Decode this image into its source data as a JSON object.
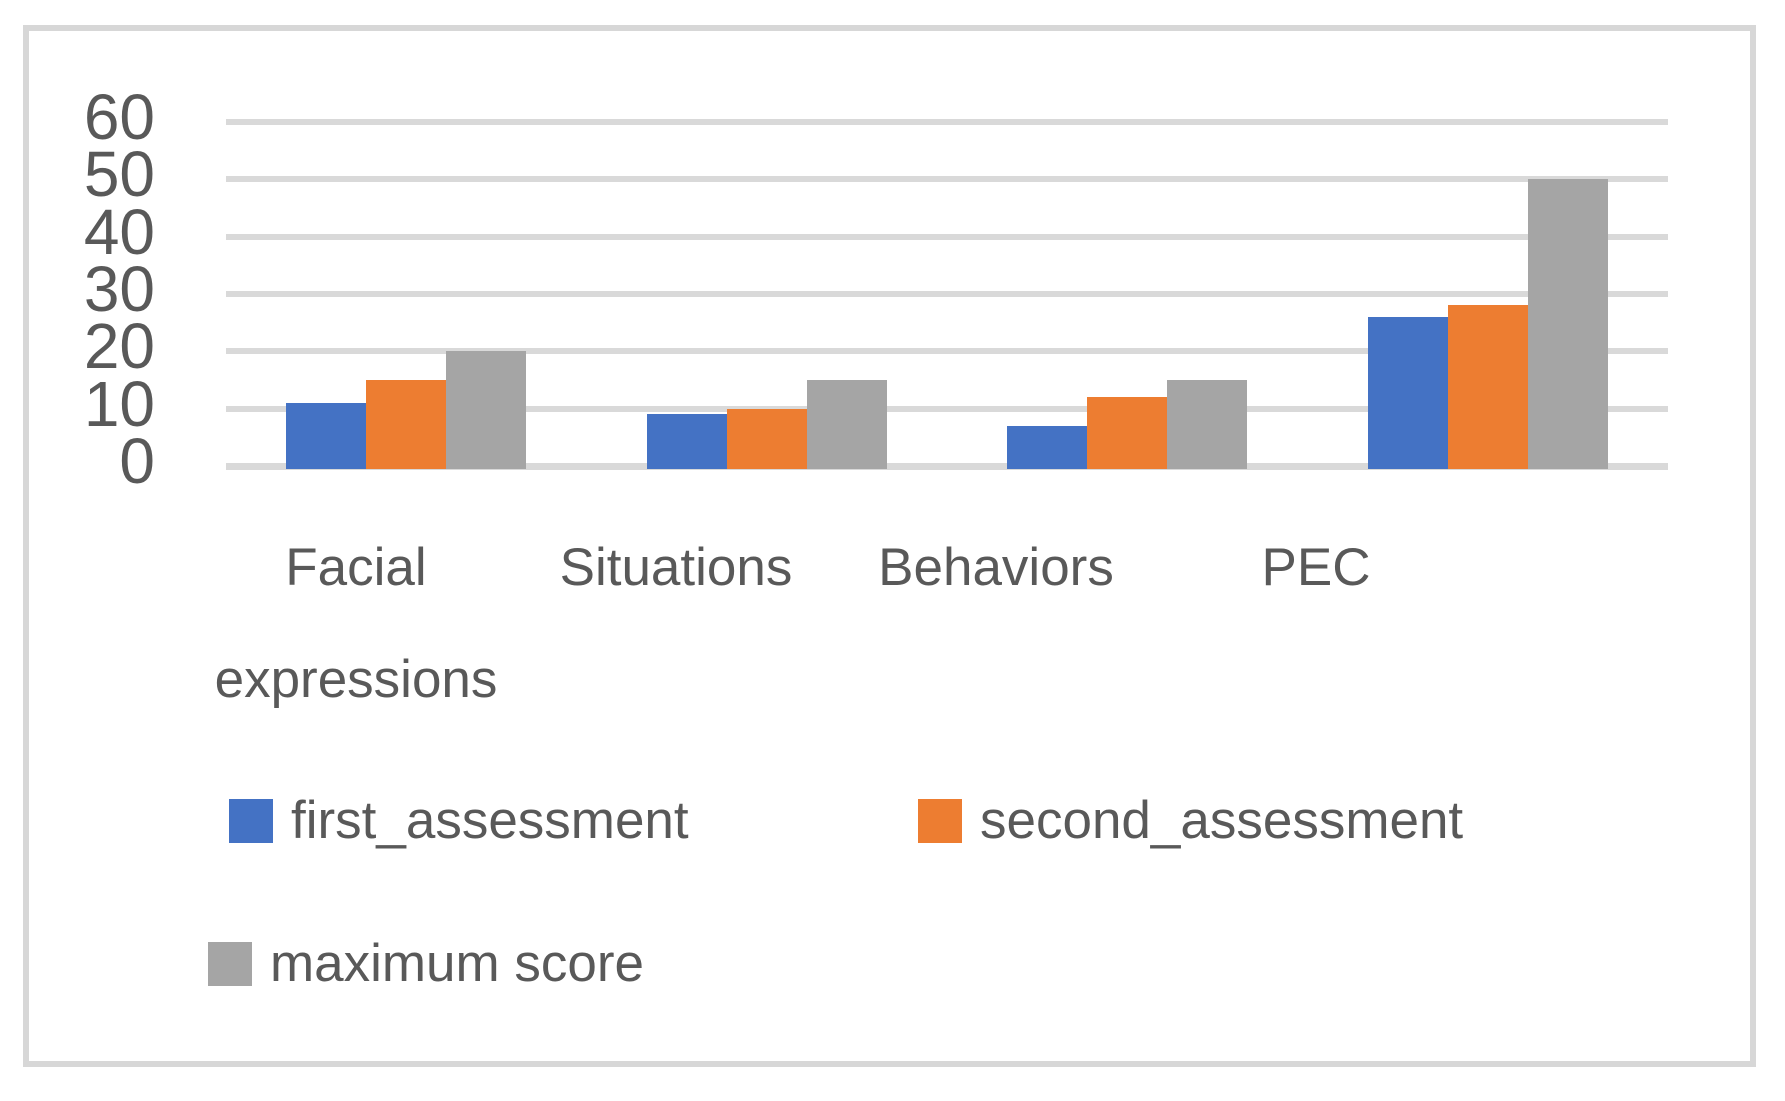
{
  "chart_data": {
    "type": "bar",
    "title": "",
    "xlabel": "",
    "ylabel": "",
    "categories": [
      "Facial expressions",
      "Situations",
      "Behaviors",
      "PEC"
    ],
    "series": [
      {
        "name": "first_assessment",
        "color": "#4472C4",
        "values": [
          11,
          9,
          7,
          26
        ]
      },
      {
        "name": "second_assessment",
        "color": "#ED7D31",
        "values": [
          15,
          10,
          12,
          28
        ]
      },
      {
        "name": "maximum score",
        "color": "#A5A5A5",
        "values": [
          20,
          15,
          15,
          50
        ]
      }
    ],
    "ylim": [
      0,
      60
    ],
    "yticks": [
      0,
      10,
      20,
      30,
      40,
      50,
      60
    ],
    "grid": true,
    "legend_position": "bottom",
    "colors": {
      "gridline": "#D9D9D9",
      "axis_text": "#595959",
      "frame_border": "#D7D7D7",
      "background": "#FFFFFF"
    }
  }
}
